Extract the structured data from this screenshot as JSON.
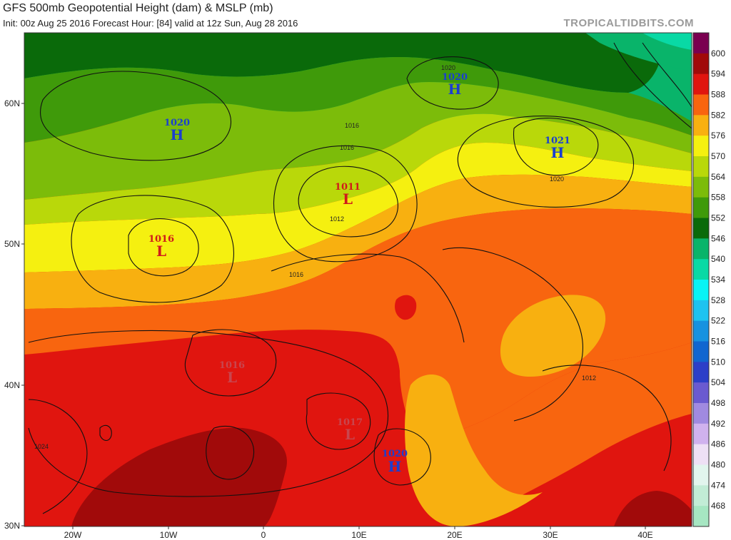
{
  "header": {
    "title": "GFS 500mb Geopotential Height (dam) & MSLP (mb)",
    "subtitle": "Init: 00z Aug 25 2016   Forecast Hour: [84]   valid at 12z Sun, Aug 28 2016",
    "brand": "TROPICALTIDBITS.COM"
  },
  "axes": {
    "lat_labels": [
      "60N",
      "50N",
      "40N",
      "30N"
    ],
    "lon_labels": [
      "20W",
      "10W",
      "0",
      "10E",
      "20E",
      "30E",
      "40E"
    ]
  },
  "colorbar": {
    "unit": "dam",
    "levels": [
      "600",
      "594",
      "588",
      "582",
      "576",
      "570",
      "564",
      "558",
      "552",
      "546",
      "540",
      "534",
      "528",
      "522",
      "516",
      "510",
      "504",
      "498",
      "492",
      "486",
      "480",
      "474",
      "468"
    ],
    "colors": [
      "#7a0050",
      "#a10a0a",
      "#e0150f",
      "#f8650f",
      "#f8b010",
      "#f5f010",
      "#b9d80a",
      "#7cbc0a",
      "#3f9a0a",
      "#0a6a0a",
      "#09b46a",
      "#09d9a5",
      "#08f3f5",
      "#1ec3f0",
      "#1792e0",
      "#1166d0",
      "#2c3fc8",
      "#6a5ad0",
      "#a08ae0",
      "#d0b2ee",
      "#eee0f5",
      "#e2f5ee",
      "#c2ecd6",
      "#a6e6c2"
    ]
  },
  "pressure_systems": [
    {
      "type": "H",
      "value": "1020",
      "color": "#1a3fd0"
    },
    {
      "type": "H",
      "value": "1020",
      "color": "#1a3fd0"
    },
    {
      "type": "H",
      "value": "1021",
      "color": "#1a3fd0"
    },
    {
      "type": "L",
      "value": "1011",
      "color": "#d01a1a"
    },
    {
      "type": "L",
      "value": "1016",
      "color": "#d01a1a"
    },
    {
      "type": "L",
      "value": "1016",
      "color": "#c8464e"
    },
    {
      "type": "L",
      "value": "1017",
      "color": "#c8464e"
    },
    {
      "type": "H",
      "value": "1020",
      "color": "#1a3fd0"
    }
  ],
  "isobar_labels": [
    "1016",
    "1016",
    "1012",
    "1016",
    "1020",
    "1020",
    "1012",
    "1024"
  ]
}
